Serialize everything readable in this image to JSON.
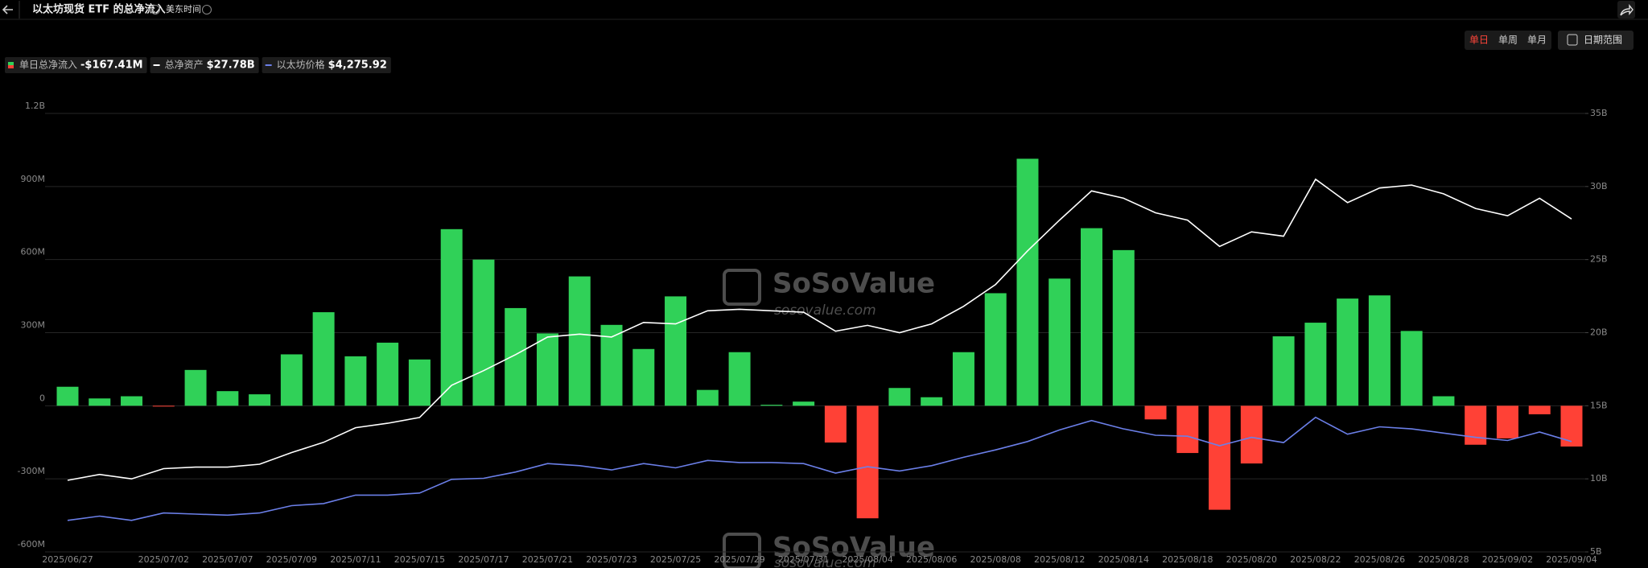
{
  "header": {
    "title": "以太坊现货 ETF 的总净流入",
    "timezone": "美东时间"
  },
  "controls": {
    "periods": [
      "单日",
      "单周",
      "单月"
    ],
    "range": "日期范围"
  },
  "watermark": {
    "brand": "SoSoValue",
    "site": "sosovalue.com"
  },
  "chart_data": {
    "type": "bar",
    "categories": [
      "2025/06/27",
      null,
      null,
      "2025/07/02",
      null,
      "2025/07/07",
      null,
      "2025/07/09",
      null,
      "2025/07/11",
      null,
      "2025/07/15",
      null,
      "2025/07/17",
      null,
      "2025/07/21",
      null,
      "2025/07/23",
      null,
      "2025/07/25",
      null,
      "2025/07/29",
      null,
      "2025/07/31",
      null,
      "2025/08/04",
      null,
      "2025/08/06",
      null,
      "2025/08/08",
      null,
      "2025/08/12",
      null,
      "2025/08/14",
      null,
      "2025/08/18",
      null,
      "2025/08/20",
      null,
      "2025/08/22",
      null,
      "2025/08/26",
      null,
      "2025/08/28",
      null,
      "2025/09/02",
      null,
      "2025/09/04"
    ],
    "series": [
      {
        "name": "单日总净流入",
        "type": "bar",
        "positive_color": "#30d158",
        "negative_color": "#ff4136",
        "latest_label": "-$167.41M",
        "values": [
          78,
          30,
          39,
          -2,
          147,
          60,
          47,
          211,
          384,
          203,
          259,
          190,
          725,
          600,
          401,
          297,
          531,
          332,
          233,
          449,
          65,
          220,
          4,
          17,
          -151,
          -462,
          73,
          35,
          220,
          462,
          1014,
          522,
          729,
          639,
          -56,
          -194,
          -427,
          -237,
          285,
          341,
          440,
          453,
          307,
          39,
          -160,
          -134,
          -35,
          -167.41
        ]
      },
      {
        "name": "总净资产",
        "type": "line",
        "axis": "y2",
        "color": "#ffffff",
        "latest_label": "$27.78B",
        "values": [
          9.9,
          10.3,
          10.0,
          10.7,
          10.8,
          10.8,
          11.0,
          11.8,
          12.5,
          13.5,
          13.8,
          14.2,
          16.4,
          17.4,
          18.5,
          19.7,
          19.9,
          19.7,
          20.7,
          20.6,
          21.5,
          21.6,
          21.5,
          21.4,
          20.1,
          20.5,
          20.0,
          20.6,
          21.8,
          23.3,
          25.6,
          27.7,
          29.7,
          29.2,
          28.2,
          27.7,
          25.9,
          26.9,
          26.6,
          30.5,
          28.9,
          29.9,
          30.1,
          29.5,
          28.5,
          28.0,
          29.2,
          27.78
        ]
      },
      {
        "name": "以太坊价格",
        "type": "line",
        "axis": "y3",
        "color": "#6b7fe8",
        "latest_label": "$4,275.92",
        "values": [
          2420,
          2519,
          2420,
          2593,
          2568,
          2543,
          2593,
          2766,
          2816,
          3014,
          3014,
          3063,
          3385,
          3410,
          3558,
          3756,
          3707,
          3608,
          3756,
          3657,
          3830,
          3781,
          3781,
          3756,
          3533,
          3682,
          3583,
          3707,
          3905,
          4078,
          4276,
          4548,
          4771,
          4573,
          4424,
          4400,
          4177,
          4375,
          4251,
          4845,
          4449,
          4622,
          4573,
          4474,
          4375,
          4301,
          4499,
          4275.92
        ]
      }
    ],
    "ylim": [
      -600,
      1200
    ],
    "yticks": [
      {
        "value": -600,
        "label": "-600M"
      },
      {
        "value": -300,
        "label": "-300M"
      },
      0,
      {
        "value": 300,
        "label": "300M"
      },
      {
        "value": 600,
        "label": "600M"
      },
      {
        "value": 900,
        "label": "900M"
      },
      {
        "value": 1200,
        "label": "1.2B"
      }
    ],
    "y2lim": [
      5,
      35
    ],
    "y2ticks": [
      {
        "value": 5,
        "label": "5B"
      },
      {
        "value": 10,
        "label": "10B"
      },
      {
        "value": 15,
        "label": "15B"
      },
      {
        "value": 20,
        "label": "20B"
      },
      {
        "value": 25,
        "label": "25B"
      },
      {
        "value": 30,
        "label": "30B"
      },
      {
        "value": 35,
        "label": "35B"
      }
    ],
    "y3lim": [
      1677,
      12000
    ],
    "grid": true
  }
}
